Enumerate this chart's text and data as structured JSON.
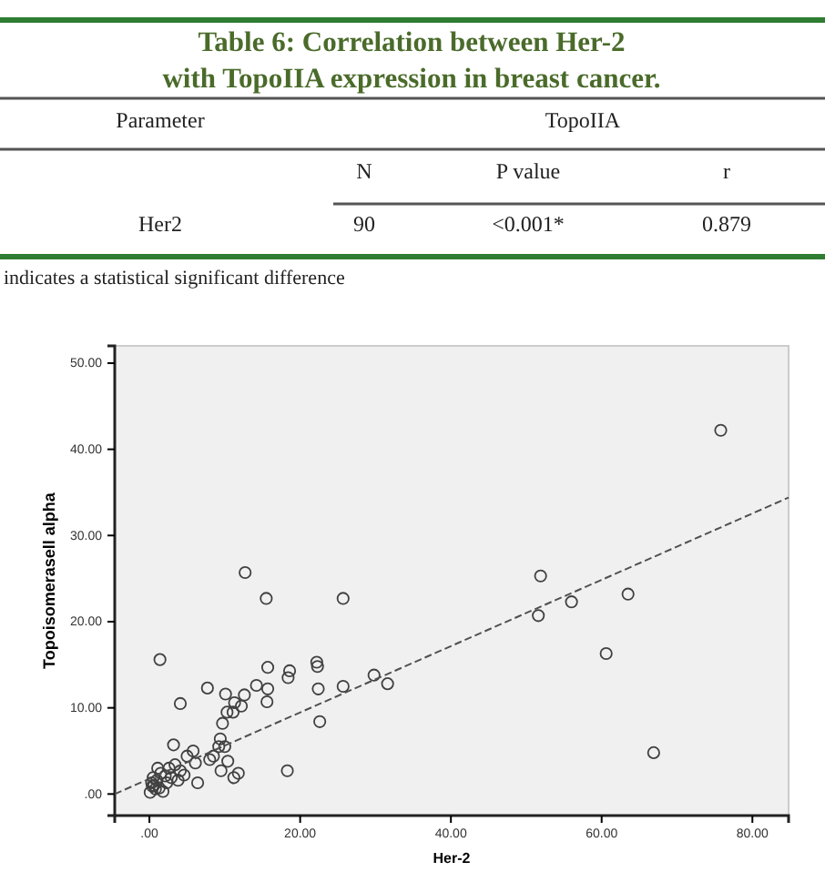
{
  "chart_data": {
    "type": "scatter",
    "title": "Table 6: Correlation between Her-2 with TopoIIA expression in breast cancer.",
    "annotations": [
      "Parameter",
      "TopoIIA",
      "N",
      "P value",
      "r",
      "Her2",
      "90",
      "<0.001*",
      "0.879",
      "indicates a statistical significant difference"
    ],
    "xlabel": "Her-2",
    "ylabel": "Topoisomerasell alpha",
    "xlim": [
      -4.6,
      84.8
    ],
    "ylim": [
      -2.5,
      52
    ],
    "xticks": [
      {
        "value": 0,
        "label": ".00"
      },
      {
        "value": 20,
        "label": "20.00"
      },
      {
        "value": 40,
        "label": "40.00"
      },
      {
        "value": 60,
        "label": "60.00"
      },
      {
        "value": 80,
        "label": "80.00"
      }
    ],
    "yticks": [
      {
        "value": 0,
        "label": ".00"
      },
      {
        "value": 10,
        "label": "10.00"
      },
      {
        "value": 20,
        "label": "20.00"
      },
      {
        "value": 30,
        "label": "30.00"
      },
      {
        "value": 40,
        "label": "40.00"
      },
      {
        "value": 50,
        "label": "50.00"
      }
    ],
    "grid": false,
    "series": [
      {
        "color": "#404040",
        "marker": "circle",
        "x": [
          12.7,
          15.5,
          25.7,
          1.4,
          15.7,
          18.6,
          18.4,
          22.2,
          22.3,
          7.7,
          14.2,
          12.6,
          10.1,
          15.7,
          22.4,
          25.7,
          29.8,
          31.6,
          4.1,
          15.6,
          11.3,
          12.2,
          10.3,
          11.1,
          22.6,
          9.7,
          9.4,
          10.0,
          9.2,
          3.2,
          5.8,
          5.0,
          8.5,
          8.0,
          10.4,
          6.1,
          9.5,
          18.3,
          11.8,
          11.2,
          6.4,
          4.1,
          3.4,
          1.1,
          2.1,
          2.9,
          0.3,
          0.8,
          0.1,
          1.3,
          2.3,
          0.5,
          1.5,
          1.8,
          0.6,
          3.8,
          4.6,
          2.6,
          1.0,
          0.4,
          75.8,
          51.9,
          51.6,
          56.0,
          63.5,
          60.6,
          66.9
        ],
        "values": [
          25.7,
          22.7,
          22.7,
          15.6,
          14.7,
          14.3,
          13.5,
          15.3,
          14.8,
          12.3,
          12.6,
          11.5,
          11.6,
          12.2,
          12.2,
          12.5,
          13.8,
          12.8,
          10.5,
          10.7,
          10.6,
          10.2,
          9.5,
          9.5,
          8.4,
          8.2,
          6.4,
          5.5,
          5.5,
          5.7,
          5.0,
          4.4,
          4.4,
          4.0,
          3.8,
          3.6,
          2.7,
          2.7,
          2.4,
          1.9,
          1.3,
          2.7,
          3.4,
          3.0,
          2.1,
          1.9,
          1.3,
          0.6,
          0.2,
          0.7,
          1.3,
          1.9,
          2.4,
          0.3,
          1.0,
          1.6,
          2.2,
          3.0,
          1.6,
          0.9,
          42.2,
          25.3,
          20.7,
          22.3,
          23.2,
          16.3,
          4.8
        ]
      },
      {
        "type": "line",
        "color": "#505050",
        "line_style": "dashed",
        "marker": "none",
        "x": [
          -4.6,
          84.8
        ],
        "values": [
          0.0,
          34.4
        ]
      }
    ]
  }
}
